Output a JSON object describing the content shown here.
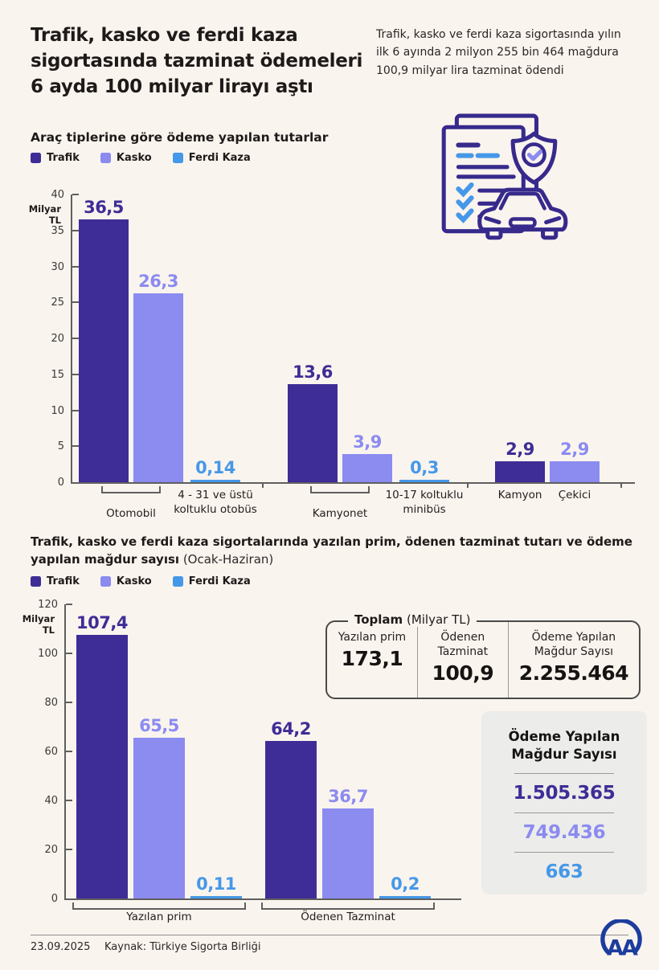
{
  "colors": {
    "background": "#FAF4EE",
    "trafik": "#3E2D96",
    "kasko": "#8B8BF0",
    "ferdi_kaza": "#4598E8",
    "ink": "#372A8C",
    "aa_blue": "#1D3D9E",
    "box_gray": "#ECECEA"
  },
  "header": {
    "title": "Trafik, kasko ve ferdi kaza sigortasında tazminat ödemeleri 6 ayda 100 milyar lirayı aştı",
    "summary": "Trafik, kasko ve ferdi kaza sigortasında yılın ilk 6 ayında 2 milyon 255 bin 464 mağdura 100,9 milyar lira tazminat ödendi"
  },
  "legend": [
    {
      "label": "Trafik",
      "color": "#3E2D96"
    },
    {
      "label": "Kasko",
      "color": "#8B8BF0"
    },
    {
      "label": "Ferdi Kaza",
      "color": "#4598E8"
    }
  ],
  "chart_data": [
    {
      "type": "bar",
      "title": "Araç tiplerine göre ödeme yapılan tutarlar",
      "unit_label": "Milyar TL",
      "ylim": [
        0,
        40
      ],
      "ytick_step": 5,
      "grid": false,
      "legend_position": "top-left",
      "legend": [
        "Trafik",
        "Kasko",
        "Ferdi Kaza"
      ],
      "groups": [
        {
          "category": "Otomobil",
          "bracket": "narrow",
          "bars": [
            {
              "series": "Trafik",
              "value": 36.5,
              "label": "36,5"
            },
            {
              "series": "Kasko",
              "value": 26.3,
              "label": "26,3"
            }
          ]
        },
        {
          "category": "4 - 31 ve üstü\nkoltuklu otobüs",
          "bracket": null,
          "bars": [
            {
              "series": "Ferdi Kaza",
              "value": 0.14,
              "label": "0,14"
            }
          ]
        },
        {
          "category": "Kamyonet",
          "bracket": "narrow",
          "bars": [
            {
              "series": "Trafik",
              "value": 13.6,
              "label": "13,6"
            },
            {
              "series": "Kasko",
              "value": 3.9,
              "label": "3,9"
            }
          ]
        },
        {
          "category": "10-17 koltuklu\nminibüs",
          "bracket": null,
          "bars": [
            {
              "series": "Ferdi Kaza",
              "value": 0.3,
              "label": "0,3"
            }
          ]
        },
        {
          "category": "Kamyon",
          "bracket": null,
          "bars": [
            {
              "series": "Trafik",
              "value": 2.9,
              "label": "2,9"
            }
          ]
        },
        {
          "category": "Çekici",
          "bracket": null,
          "bars": [
            {
              "series": "Kasko",
              "value": 2.9,
              "label": "2,9"
            }
          ]
        }
      ]
    },
    {
      "type": "bar",
      "title": "Trafik, kasko ve ferdi kaza sigortalarında yazılan prim, ödenen tazminat tutarı ve ödeme yapılan mağdur sayısı",
      "title_suffix": " (Ocak-Haziran)",
      "unit_label": "Milyar TL",
      "ylim": [
        0,
        120
      ],
      "ytick_step": 20,
      "grid": false,
      "legend_position": "top-left",
      "legend": [
        "Trafik",
        "Kasko",
        "Ferdi Kaza"
      ],
      "groups": [
        {
          "category": "Yazılan prim",
          "bracket": "full",
          "bars": [
            {
              "series": "Trafik",
              "value": 107.4,
              "label": "107,4"
            },
            {
              "series": "Kasko",
              "value": 65.5,
              "label": "65,5"
            },
            {
              "series": "Ferdi Kaza",
              "value": 0.11,
              "label": "0,11"
            }
          ]
        },
        {
          "category": "Ödenen Tazminat",
          "bracket": "full",
          "bars": [
            {
              "series": "Trafik",
              "value": 64.2,
              "label": "64,2"
            },
            {
              "series": "Kasko",
              "value": 36.7,
              "label": "36,7"
            },
            {
              "series": "Ferdi Kaza",
              "value": 0.2,
              "label": "0,2"
            }
          ]
        }
      ]
    }
  ],
  "totals_box": {
    "title": "Toplam",
    "title_suffix": "(Milyar TL)",
    "columns": [
      {
        "header": "Yazılan prim",
        "value": "173,1"
      },
      {
        "header": "Ödenen Tazminat",
        "value": "100,9"
      },
      {
        "header": "Ödeme Yapılan Mağdur Sayısı",
        "value": "2.255.464"
      }
    ]
  },
  "victims_box": {
    "title": "Ödeme Yapılan Mağdur Sayısı",
    "rows": [
      {
        "series": "Trafik",
        "value": "1.505.365"
      },
      {
        "series": "Kasko",
        "value": "749.436"
      },
      {
        "series": "Ferdi Kaza",
        "value": "663"
      }
    ]
  },
  "footer": {
    "date": "23.09.2025",
    "source": "Kaynak: Türkiye Sigorta Birliği",
    "logo": "AA"
  }
}
